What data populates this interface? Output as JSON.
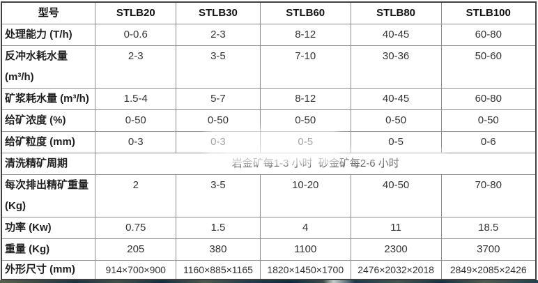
{
  "table": {
    "header": [
      "型号",
      "STLB20",
      "STLB30",
      "STLB60",
      "STLB80",
      "STLB100"
    ],
    "rows": [
      {
        "label": "处理能力 (T/h)",
        "values": [
          "0-0.6",
          "2-3",
          "8-12",
          "40-45",
          "60-80"
        ]
      },
      {
        "label": "反冲水耗水量 (m³/h)",
        "values": [
          "2-3",
          "3-5",
          "7-10",
          "30-36",
          "50-60"
        ]
      },
      {
        "label": "矿浆耗水量 (m³/h)",
        "values": [
          "1.5-4",
          "5-7",
          "8-12",
          "40-45",
          "60-80"
        ]
      },
      {
        "label": "给矿浓度 (%)",
        "values": [
          "0-50",
          "0-50",
          "0-50",
          "0-50",
          "0-50"
        ]
      },
      {
        "label": "给矿粒度 (mm)",
        "values": [
          "0-3",
          "0-3",
          "0-5",
          "0-5",
          "0-6"
        ]
      },
      {
        "label": "清洗精矿周期",
        "span_value": "岩金矿每1-3 小时  砂金矿每2-6 小时"
      },
      {
        "label": "每次排出精矿重量 (Kg)",
        "values": [
          "2",
          "3-5",
          "10-20",
          "40-50",
          "70-80"
        ]
      },
      {
        "label": "功率 (Kw)",
        "values": [
          "0.75",
          "1.5",
          "4",
          "11",
          "18.5"
        ]
      },
      {
        "label": "重量 (Kg)",
        "values": [
          "205",
          "380",
          "1100",
          "2300",
          "3700"
        ]
      },
      {
        "label": "外形尺寸 (mm)",
        "values": [
          "914×700×900",
          "1160×885×1165",
          "1820×1450×1700",
          "2476×2032×2018",
          "2849×2085×2426"
        ]
      }
    ]
  },
  "colors": {
    "border_outer": "#414141",
    "border_inner": "#8c8c8c",
    "text": "#333333",
    "label_text": "#1f1f1f"
  }
}
